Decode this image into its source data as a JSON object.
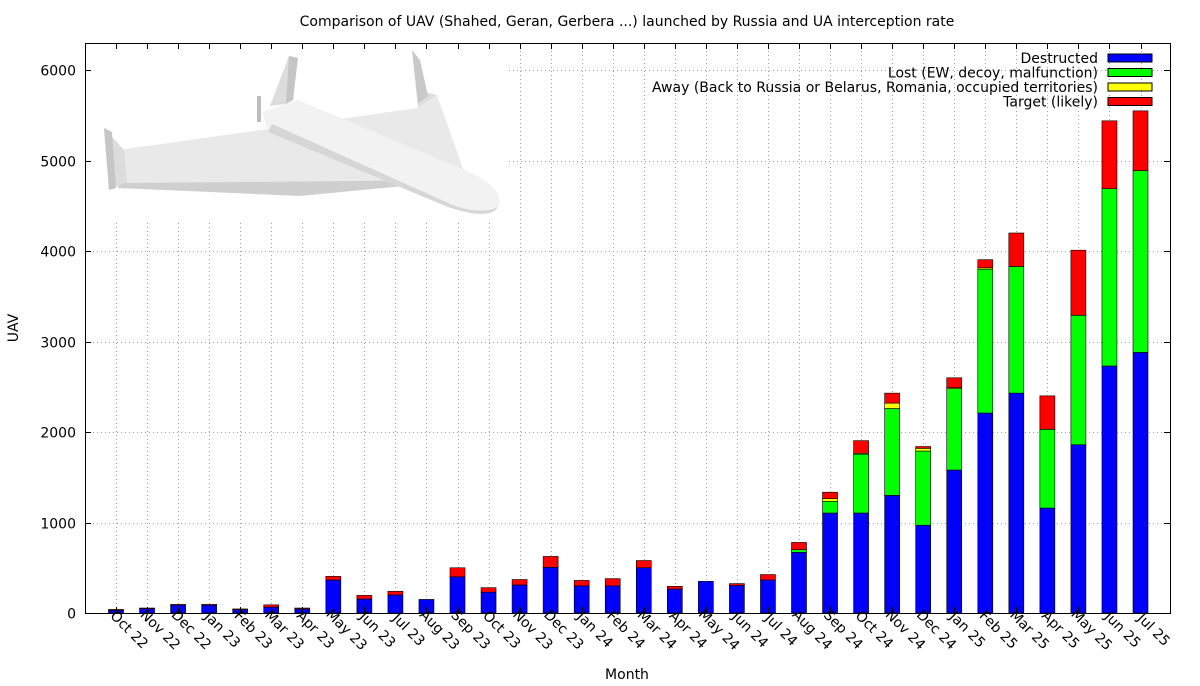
{
  "chart_data": {
    "type": "bar",
    "stacked": true,
    "title": "Comparison of UAV (Shahed, Geran, Gerbera ...) launched by Russia and UA interception rate",
    "xlabel": "Month",
    "ylabel": "UAV",
    "ylim": [
      0,
      6300
    ],
    "yticks": [
      0,
      1000,
      2000,
      3000,
      4000,
      5000,
      6000
    ],
    "grid": true,
    "legend_position": "top-right",
    "image": "shahed-drone-illustration",
    "categories": [
      "Oct 22",
      "Nov 22",
      "Dec 22",
      "Jan 23",
      "Feb 23",
      "Mar 23",
      "Apr 23",
      "May 23",
      "Jun 23",
      "Jul 23",
      "Aug 23",
      "Sep 23",
      "Oct 23",
      "Nov 23",
      "Dec 23",
      "Jan 24",
      "Feb 24",
      "Mar 24",
      "Apr 24",
      "May 24",
      "Jun 24",
      "Jul 24",
      "Aug 24",
      "Sep 24",
      "Oct 24",
      "Nov 24",
      "Dec 24",
      "Jan 25",
      "Feb 25",
      "Mar 25",
      "Apr 25",
      "May 25",
      "Jun 25",
      "Jul 25"
    ],
    "series": [
      {
        "name": "Destructed",
        "color": "#0000ff",
        "values": [
          30,
          50,
          90,
          90,
          40,
          65,
          45,
          365,
          155,
          200,
          150,
          400,
          230,
          310,
          505,
          300,
          300,
          500,
          265,
          350,
          305,
          365,
          670,
          1105,
          1105,
          1300,
          970,
          1580,
          2210,
          2430,
          1160,
          1860,
          2730,
          2880
        ]
      },
      {
        "name": "Lost (EW, decoy, malfunction)",
        "color": "#00ff00",
        "values": [
          0,
          0,
          0,
          0,
          0,
          0,
          0,
          0,
          0,
          0,
          0,
          0,
          0,
          0,
          0,
          0,
          0,
          0,
          0,
          0,
          0,
          0,
          30,
          130,
          650,
          960,
          820,
          900,
          1590,
          1400,
          870,
          1430,
          1960,
          2010
        ]
      },
      {
        "name": "Away (Back to Russia or Belarus, Romania, occupied territories)",
        "color": "#ffff00",
        "values": [
          0,
          0,
          0,
          0,
          0,
          0,
          0,
          0,
          0,
          0,
          0,
          0,
          0,
          0,
          0,
          0,
          0,
          0,
          0,
          0,
          0,
          0,
          0,
          30,
          10,
          60,
          30,
          10,
          15,
          0,
          0,
          0,
          0,
          0
        ]
      },
      {
        "name": "Target (likely)",
        "color": "#ff0000",
        "values": [
          10,
          5,
          5,
          5,
          5,
          25,
          10,
          40,
          40,
          40,
          0,
          100,
          50,
          60,
          120,
          60,
          80,
          80,
          30,
          0,
          20,
          60,
          80,
          70,
          140,
          110,
          20,
          110,
          90,
          370,
          370,
          720,
          750,
          660
        ]
      }
    ]
  }
}
